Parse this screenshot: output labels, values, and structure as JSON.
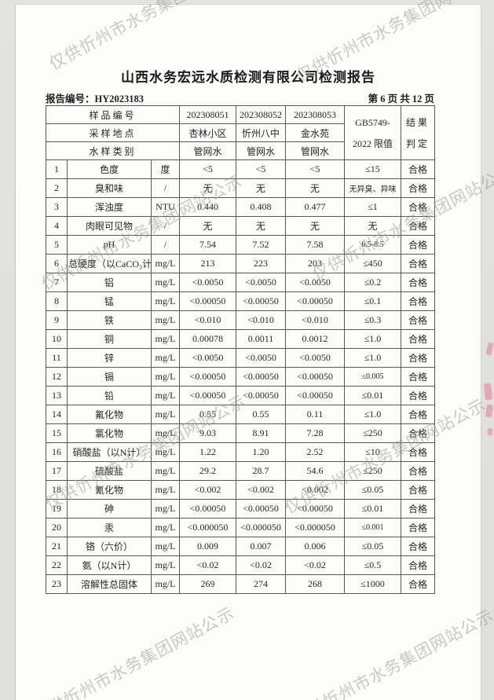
{
  "watermark": {
    "text": "仅供忻州市水务集团网站公示"
  },
  "colors": {
    "paper": "#fcfcfa",
    "watermark_gray": "#999997",
    "ink_smudge_pink": "#e07094",
    "table_border": "#585858"
  },
  "header": {
    "title": "山西水务宏远水质检测有限公司检测报告",
    "report_no": "报告编号：HY2023183",
    "page_info": "第 6 页 共 12 页"
  },
  "table": {
    "header": {
      "sample_no_label": "样品编号",
      "location_label": "采样地点",
      "type_label": "水样类别",
      "sample_ids": [
        "202308051",
        "202308052",
        "202308053"
      ],
      "locations": [
        "杏林小区",
        "忻州八中",
        "金水苑"
      ],
      "types": [
        "管网水",
        "管网水",
        "管网水"
      ],
      "limit_line1": "GB5749-",
      "limit_line2": "2022 限值",
      "result_line1": "结果",
      "result_line2": "判定"
    },
    "rows": [
      {
        "no": "1",
        "item": "色度",
        "unit": "度",
        "values": [
          "<5",
          "<5",
          "<5"
        ],
        "limit": "≤15",
        "result": "合格"
      },
      {
        "no": "2",
        "item": "臭和味",
        "unit": "/",
        "values": [
          "无",
          "无",
          "无"
        ],
        "limit": "无异臭、异味",
        "result": "合格"
      },
      {
        "no": "3",
        "item": "浑浊度",
        "unit": "NTU",
        "values": [
          "0.440",
          "0.408",
          "0.477"
        ],
        "limit": "≤1",
        "result": "合格"
      },
      {
        "no": "4",
        "item": "肉眼可见物",
        "unit": "/",
        "values": [
          "无",
          "无",
          "无"
        ],
        "limit": "无",
        "result": "合格"
      },
      {
        "no": "5",
        "item": "pH",
        "unit": "/",
        "values": [
          "7.54",
          "7.52",
          "7.58"
        ],
        "limit": "6.5-8.5",
        "result": "合格"
      },
      {
        "no": "6",
        "item": "总硬度（以CaCO₃计）",
        "unit": "mg/L",
        "values": [
          "213",
          "223",
          "203"
        ],
        "limit": "≤450",
        "result": "合格"
      },
      {
        "no": "7",
        "item": "铝",
        "unit": "mg/L",
        "values": [
          "<0.0050",
          "<0.0050",
          "<0.0050"
        ],
        "limit": "≤0.2",
        "result": "合格"
      },
      {
        "no": "8",
        "item": "锰",
        "unit": "mg/L",
        "values": [
          "<0.00050",
          "<0.00050",
          "<0.00050"
        ],
        "limit": "≤0.1",
        "result": "合格"
      },
      {
        "no": "9",
        "item": "铁",
        "unit": "mg/L",
        "values": [
          "<0.010",
          "<0.010",
          "<0.010"
        ],
        "limit": "≤0.3",
        "result": "合格"
      },
      {
        "no": "10",
        "item": "铜",
        "unit": "mg/L",
        "values": [
          "0.00078",
          "0.0011",
          "0.0012"
        ],
        "limit": "≤1.0",
        "result": "合格"
      },
      {
        "no": "11",
        "item": "锌",
        "unit": "mg/L",
        "values": [
          "<0.0050",
          "<0.0050",
          "<0.0050"
        ],
        "limit": "≤1.0",
        "result": "合格"
      },
      {
        "no": "12",
        "item": "镉",
        "unit": "mg/L",
        "values": [
          "<0.00050",
          "<0.00050",
          "<0.00050"
        ],
        "limit": "≤0.005",
        "result": "合格"
      },
      {
        "no": "13",
        "item": "铅",
        "unit": "mg/L",
        "values": [
          "<0.00050",
          "<0.00050",
          "<0.00050"
        ],
        "limit": "≤0.01",
        "result": "合格"
      },
      {
        "no": "14",
        "item": "氟化物",
        "unit": "mg/L",
        "values": [
          "0.55",
          "0.55",
          "0.11"
        ],
        "limit": "≤1.0",
        "result": "合格"
      },
      {
        "no": "15",
        "item": "氯化物",
        "unit": "mg/L",
        "values": [
          "9.03",
          "8.91",
          "7.28"
        ],
        "limit": "≤250",
        "result": "合格"
      },
      {
        "no": "16",
        "item": "硝酸盐（以N计）",
        "unit": "mg/L",
        "values": [
          "1.22",
          "1.20",
          "2.52"
        ],
        "limit": "≤10",
        "result": "合格"
      },
      {
        "no": "17",
        "item": "硫酸盐",
        "unit": "mg/L",
        "values": [
          "29.2",
          "28.7",
          "54.6"
        ],
        "limit": "≤250",
        "result": "合格"
      },
      {
        "no": "18",
        "item": "氰化物",
        "unit": "mg/L",
        "values": [
          "<0.002",
          "<0.002",
          "<0.002"
        ],
        "limit": "≤0.05",
        "result": "合格"
      },
      {
        "no": "19",
        "item": "砷",
        "unit": "mg/L",
        "values": [
          "<0.00050",
          "<0.00050",
          "<0.00050"
        ],
        "limit": "≤0.01",
        "result": "合格"
      },
      {
        "no": "20",
        "item": "汞",
        "unit": "mg/L",
        "values": [
          "<0.000050",
          "<0.000050",
          "<0.000050"
        ],
        "limit": "≤0.001",
        "result": "合格"
      },
      {
        "no": "21",
        "item": "铬（六价）",
        "unit": "mg/L",
        "values": [
          "0.009",
          "0.007",
          "0.006"
        ],
        "limit": "≤0.05",
        "result": "合格"
      },
      {
        "no": "22",
        "item": "氨（以N计）",
        "unit": "mg/L",
        "values": [
          "<0.02",
          "<0.02",
          "<0.02"
        ],
        "limit": "≤0.5",
        "result": "合格"
      },
      {
        "no": "23",
        "item": "溶解性总固体",
        "unit": "mg/L",
        "values": [
          "269",
          "274",
          "268"
        ],
        "limit": "≤1000",
        "result": "合格"
      }
    ]
  }
}
